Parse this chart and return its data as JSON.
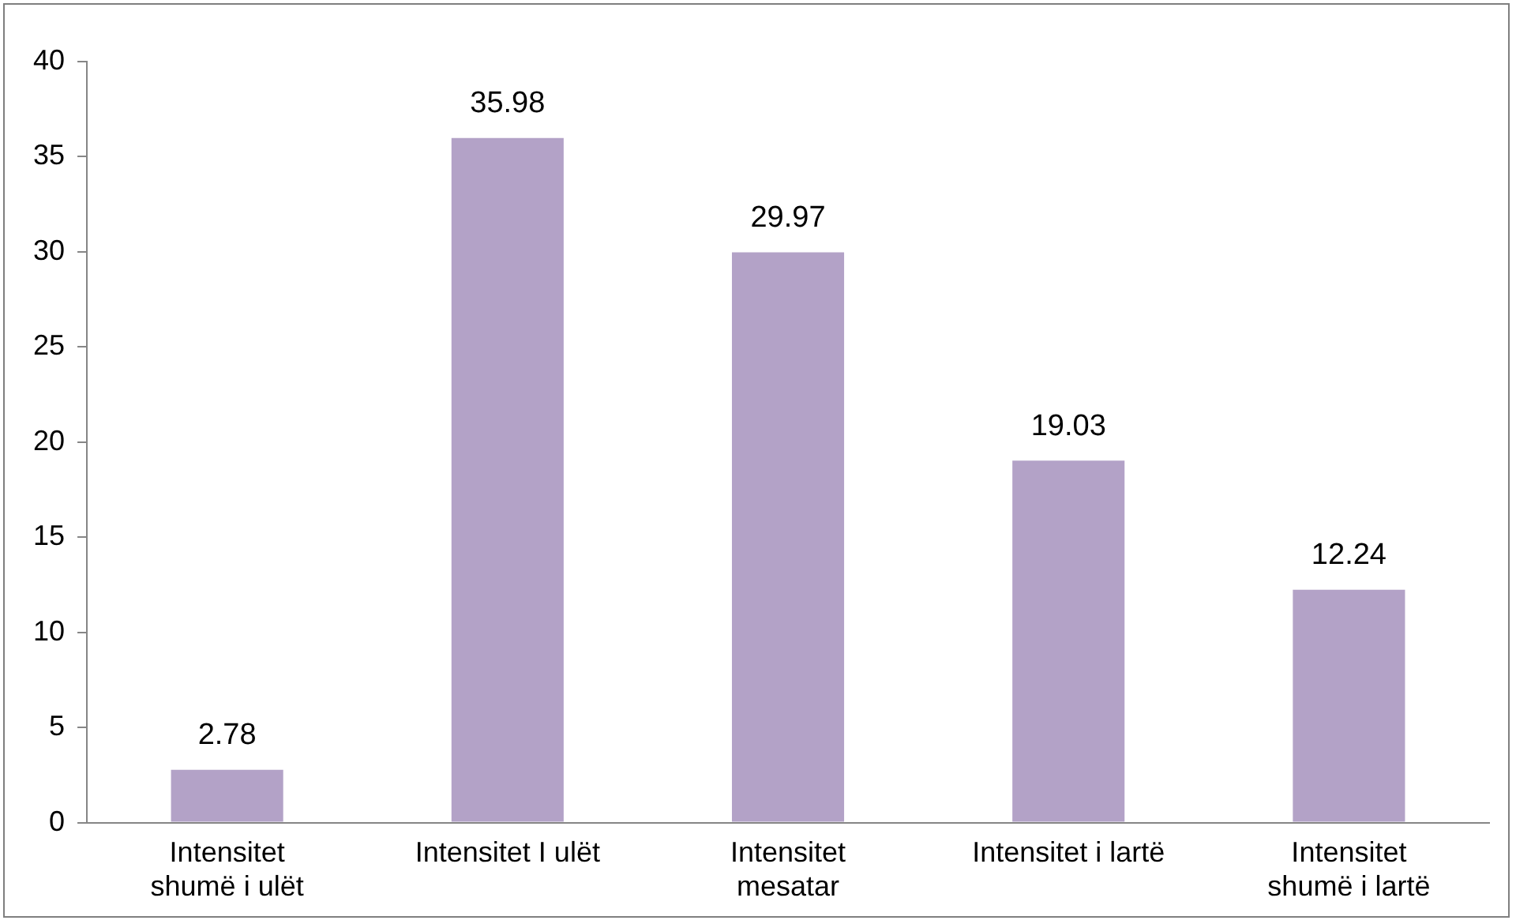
{
  "chart_data": {
    "type": "bar",
    "categories": [
      "Intensitet shumë i ulët",
      "Intensitet I ulët",
      "Intensitet mesatar",
      "Intensitet i lartë",
      "Intensitet shumë i lartë"
    ],
    "values": [
      2.78,
      35.98,
      29.97,
      19.03,
      12.24
    ],
    "color": "#b3a2c7",
    "ylim": [
      0,
      40
    ],
    "yticks": [
      0,
      5,
      10,
      15,
      20,
      25,
      30,
      35,
      40
    ],
    "grid": false,
    "legend": false,
    "data_labels": true
  }
}
